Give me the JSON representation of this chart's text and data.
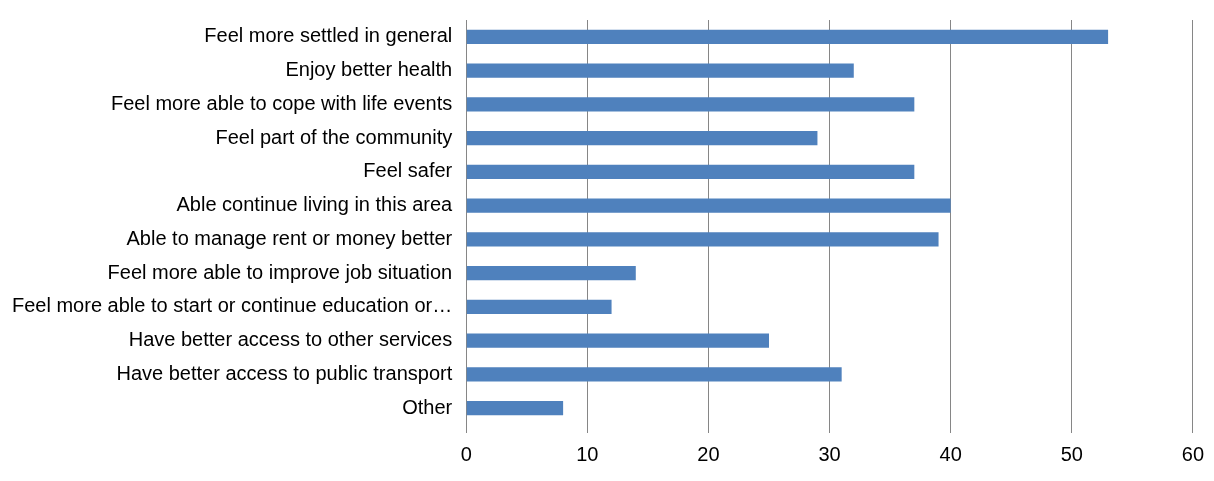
{
  "chart_data": {
    "type": "bar",
    "orientation": "horizontal",
    "categories": [
      "Feel more settled in general",
      "Enjoy better health",
      "Feel more able to cope with life events",
      "Feel part of the community",
      "Feel safer",
      "Able continue living in this area",
      "Able to manage rent or money better",
      "Feel more able to improve job situation",
      "Feel more able to start or continue education or…",
      "Have better access to other services",
      "Have better access to public transport",
      "Other"
    ],
    "values": [
      53,
      32,
      37,
      29,
      37,
      40,
      39,
      14,
      12,
      25,
      31,
      8
    ],
    "color": "#4f81bd",
    "xlim": [
      0,
      60
    ],
    "xticks": [
      0,
      10,
      20,
      30,
      40,
      50,
      60
    ],
    "grid": "x",
    "legend": false
  }
}
